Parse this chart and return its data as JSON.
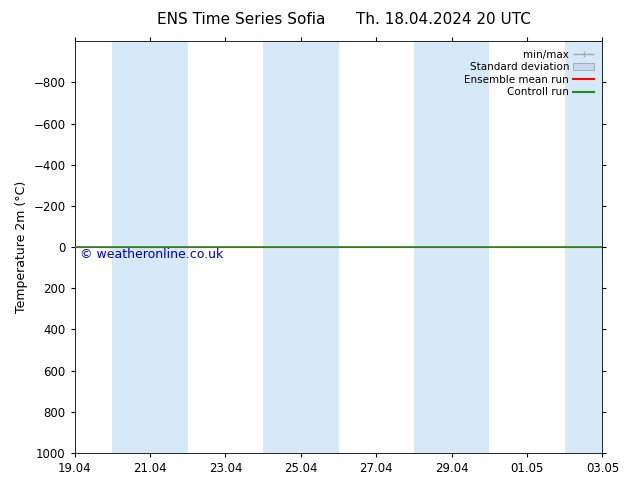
{
  "title_left": "ENS Time Series Sofia",
  "title_right": "Th. 18.04.2024 20 UTC",
  "ylabel": "Temperature 2m (°C)",
  "watermark": "© weatheronline.co.uk",
  "ylim_bottom": -1000,
  "ylim_top": 1000,
  "yticks": [
    -800,
    -600,
    -400,
    -200,
    0,
    200,
    400,
    600,
    800,
    1000
  ],
  "xtick_labels": [
    "19.04",
    "21.04",
    "23.04",
    "25.04",
    "27.04",
    "29.04",
    "01.05",
    "03.05"
  ],
  "xtick_positions": [
    0,
    2,
    4,
    6,
    8,
    10,
    12,
    14
  ],
  "shaded_bands": [
    [
      1,
      3
    ],
    [
      5,
      7
    ],
    [
      9,
      11
    ],
    [
      13,
      15
    ]
  ],
  "shaded_color": "#d6e9f8",
  "line_y": 0,
  "ensemble_mean_color": "#ff0000",
  "control_run_color": "#228b22",
  "bg_color": "#ffffff",
  "plot_bg_color": "#ffffff",
  "legend_entries": [
    "min/max",
    "Standard deviation",
    "Ensemble mean run",
    "Controll run"
  ],
  "minmax_color": "#aaaaaa",
  "std_dev_color": "#c8d8e8",
  "title_fontsize": 11,
  "tick_label_fontsize": 8.5,
  "ylabel_fontsize": 9,
  "legend_fontsize": 7.5,
  "watermark_fontsize": 9,
  "watermark_color": "#0000cc"
}
